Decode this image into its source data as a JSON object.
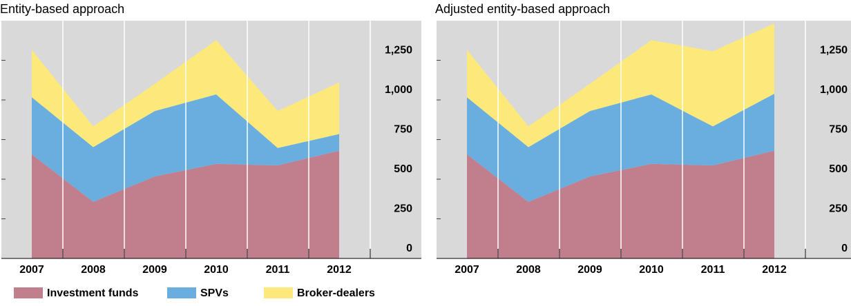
{
  "chart_data": [
    {
      "type": "stacked-area",
      "title": "Entity-based approach",
      "categories": [
        "2007",
        "2008",
        "2009",
        "2010",
        "2011",
        "2012"
      ],
      "series": [
        {
          "name": "Investment funds",
          "color": "#c17f8e",
          "values": [
            657,
            357,
            517,
            597,
            587,
            680
          ]
        },
        {
          "name": "SPVs",
          "color": "#6aaee0",
          "values": [
            360,
            345,
            413,
            438,
            110,
            105
          ]
        },
        {
          "name": "Broker-dealers",
          "color": "#fde97a",
          "values": [
            299,
            131,
            171,
            342,
            233,
            325
          ]
        }
      ],
      "ylim": [
        0,
        1500
      ],
      "yticks": [
        0,
        250,
        500,
        750,
        {
          "value": 1000,
          "label": "1,000"
        },
        {
          "value": 1250,
          "label": "1,250"
        }
      ],
      "grid": true
    },
    {
      "type": "stacked-area",
      "title": "Adjusted entity-based approach",
      "categories": [
        "2007",
        "2008",
        "2009",
        "2010",
        "2011",
        "2012"
      ],
      "series": [
        {
          "name": "Investment funds",
          "color": "#c17f8e",
          "values": [
            657,
            357,
            517,
            597,
            587,
            680
          ]
        },
        {
          "name": "SPVs",
          "color": "#6aaee0",
          "values": [
            360,
            345,
            413,
            438,
            246,
            359
          ]
        },
        {
          "name": "Broker-dealers",
          "color": "#fde97a",
          "values": [
            299,
            131,
            171,
            342,
            474,
            443
          ]
        }
      ],
      "ylim": [
        0,
        1500
      ],
      "yticks": [
        0,
        250,
        500,
        750,
        {
          "value": 1000,
          "label": "1,000"
        },
        {
          "value": 1250,
          "label": "1,250"
        }
      ],
      "grid": true
    }
  ]
}
